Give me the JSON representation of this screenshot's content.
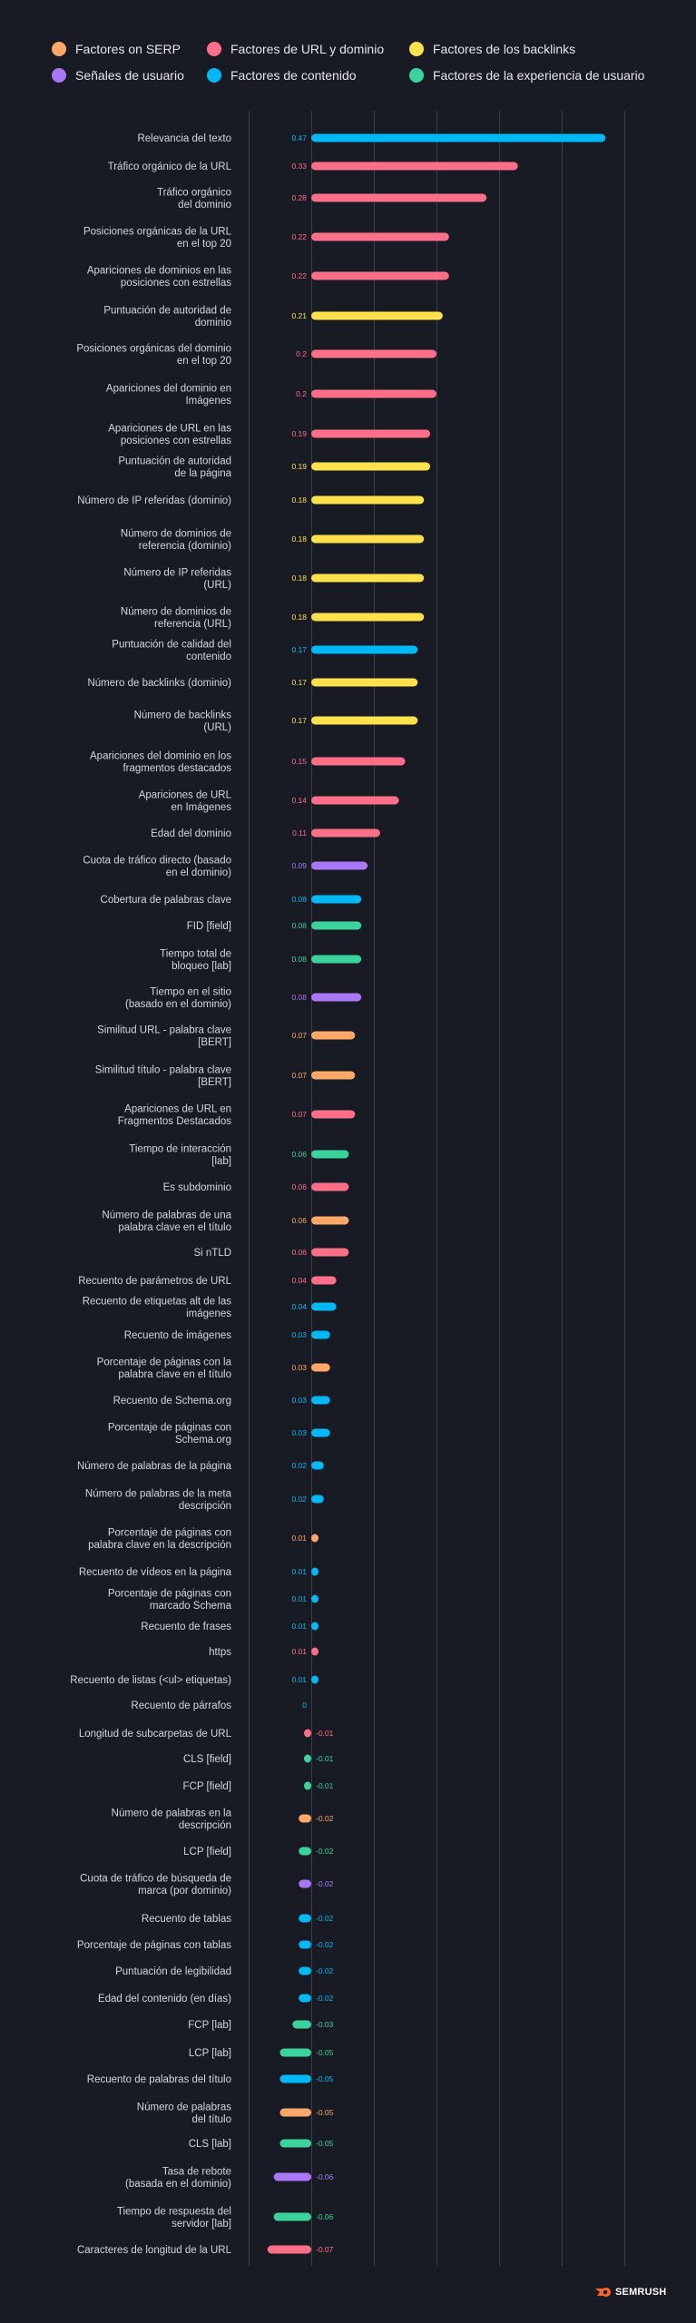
{
  "legend": [
    {
      "key": "serp",
      "label": "Factores on SERP",
      "color": "#ffa86a"
    },
    {
      "key": "url",
      "label": "Factores de URL y dominio",
      "color": "#ff6f87"
    },
    {
      "key": "backlinks",
      "label": "Factores de los backlinks",
      "color": "#ffe14d"
    },
    {
      "key": "user",
      "label": "Señales de usuario",
      "color": "#a977f8"
    },
    {
      "key": "content",
      "label": "Factores de contenido",
      "color": "#00b8f5"
    },
    {
      "key": "ux",
      "label": "Factores de la experiencia de usuario",
      "color": "#3bd39b"
    }
  ],
  "chart_data": {
    "type": "bar",
    "orientation": "horizontal",
    "xlim": [
      -0.1,
      0.5
    ],
    "grid": true,
    "legend_position": "top",
    "categories": [
      "Relevancia del texto",
      "Tráfico orgánico de la URL",
      "Tráfico orgánico\ndel dominio",
      "Posiciones orgánicas de la URL\nen el top 20",
      "Apariciones de dominios en las\nposiciones con estrellas",
      "Puntuación de autoridad de\ndominio",
      "Posiciones orgánicas del dominio\nen el top 20",
      "Apariciones del dominio en\nImágenes",
      "Apariciones de URL en las\nposiciones con estrellas",
      "Puntuación de autoridad\nde la página",
      "Número de IP referidas (dominio)",
      "Número de dominios de\nreferencia (dominio)",
      "Número de IP referidas\n(URL)",
      "Número de dominios de\nreferencia (URL)",
      "Puntuación de calidad del\ncontenido",
      "Número de backlinks (dominio)",
      "Número de backlinks\n(URL)",
      "Apariciones del dominio en los\nfragmentos destacados",
      "Apariciones de URL\nen Imágenes",
      "Edad del dominio",
      "Cuota de tráfico directo (basado\nen el dominio)",
      "Cobertura de palabras clave",
      "FID [field]",
      "Tiempo total de\nbloqueo [lab]",
      "Tiempo en el sitio\n(basado en el dominio)",
      "Similitud URL - palabra clave\n[BERT]",
      "Similitud título - palabra clave\n[BERT]",
      "Apariciones de URL en\nFragmentos Destacados",
      "Tiempo de interacción\n[lab]",
      "Es subdominio",
      "Número de palabras de una\npalabra clave en el título",
      "Si nTLD",
      "Recuento de parámetros de URL",
      "Recuento de etiquetas alt de las\nimágenes",
      "Recuento de imágenes",
      "Porcentaje de páginas con la\npalabra clave en el título",
      "Recuento de Schema.org",
      "Porcentaje de páginas con\nSchema.org",
      "Número de palabras de la página",
      "Número de palabras de la meta\ndescripción",
      "Porcentaje de páginas con\npalabra clave en la descripción",
      "Recuento de vídeos en la página",
      "Porcentaje de páginas con\nmarcado Schema",
      "Recuento de frases",
      "https",
      "Recuento de listas (<ul> etiquetas)",
      "Recuento de párrafos",
      "Longitud de subcarpetas de URL",
      "CLS [field]",
      "FCP [field]",
      "Número de palabras en la\ndescripción",
      "LCP [field]",
      "Cuota de tráfico de búsqueda de\nmarca (por dominio)",
      "Recuento de tablas",
      "Porcentaje de páginas con tablas",
      "Puntuación de legibilidad",
      "Edad del contenido (en días)",
      "FCP [lab]",
      "LCP [lab]",
      "Recuento de palabras del título",
      "Número de palabras\ndel título",
      "CLS [lab]",
      "Tasa de rebote\n(basada en el dominio)",
      "Tiempo de respuesta del\nservidor [lab]",
      "Caracteres de longitud de la URL"
    ],
    "values": [
      0.47,
      0.33,
      0.28,
      0.22,
      0.22,
      0.21,
      0.2,
      0.2,
      0.19,
      0.19,
      0.18,
      0.18,
      0.18,
      0.18,
      0.17,
      0.17,
      0.17,
      0.15,
      0.14,
      0.11,
      0.09,
      0.08,
      0.08,
      0.08,
      0.08,
      0.07,
      0.07,
      0.07,
      0.06,
      0.06,
      0.06,
      0.06,
      0.04,
      0.04,
      0.03,
      0.03,
      0.03,
      0.03,
      0.02,
      0.02,
      0.01,
      0.01,
      0.01,
      0.01,
      0.01,
      0.01,
      0,
      -0.01,
      -0.01,
      -0.01,
      -0.02,
      -0.02,
      -0.02,
      -0.02,
      -0.02,
      -0.02,
      -0.02,
      -0.03,
      -0.05,
      -0.05,
      -0.05,
      -0.05,
      -0.06,
      -0.06,
      -0.07
    ],
    "value_labels": [
      "0.47",
      "0.33",
      "0.28",
      "0.22",
      "0.22",
      "0.21",
      "0.2",
      "0.2",
      "0.19",
      "0.19",
      "0.18",
      "0.18",
      "0.18",
      "0.18",
      "0.17",
      "0.17",
      "0.17",
      "0.15",
      "0.14",
      "0.11",
      "0.09",
      "0.08",
      "0.08",
      "0.08",
      "0.08",
      "0.07",
      "0.07",
      "0.07",
      "0.06",
      "0.06",
      "0.06",
      "0.06",
      "0.04",
      "0.04",
      "0.03",
      "0.03",
      "0.03",
      "0.03",
      "0.02",
      "0.02",
      "0.01",
      "0.01",
      "0.01",
      "0.01",
      "0.01",
      "0.01",
      "0",
      "-0.01",
      "-0.01",
      "-0.01",
      "-0.02",
      "-0.02",
      "-0.02",
      "-0.02",
      "-0.02",
      "-0.02",
      "-0.02",
      "-0.03",
      "-0.05",
      "-0.05",
      "-0.05",
      "-0.05",
      "-0.06",
      "-0.06",
      "-0.07"
    ],
    "groups": [
      "content",
      "url",
      "url",
      "url",
      "url",
      "backlinks",
      "url",
      "url",
      "url",
      "backlinks",
      "backlinks",
      "backlinks",
      "backlinks",
      "backlinks",
      "content",
      "backlinks",
      "backlinks",
      "url",
      "url",
      "url",
      "user",
      "content",
      "ux",
      "ux",
      "user",
      "serp",
      "serp",
      "url",
      "ux",
      "url",
      "serp",
      "url",
      "url",
      "content",
      "content",
      "serp",
      "content",
      "content",
      "content",
      "content",
      "serp",
      "content",
      "content",
      "content",
      "url",
      "content",
      "content",
      "url",
      "ux",
      "ux",
      "serp",
      "ux",
      "user",
      "content",
      "content",
      "content",
      "content",
      "ux",
      "ux",
      "content",
      "serp",
      "ux",
      "user",
      "ux",
      "url"
    ]
  },
  "branding": {
    "logo_text": "SEMRUSH",
    "logo_color": "#ff642d"
  }
}
